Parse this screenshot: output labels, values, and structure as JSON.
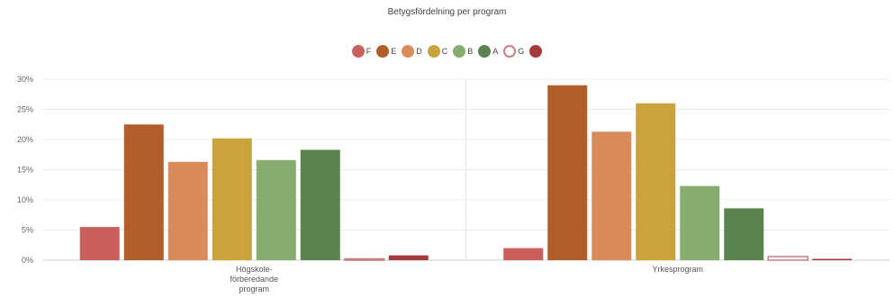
{
  "chart_data": {
    "type": "bar",
    "title": "Betygsfördelning per program",
    "categories": [
      [
        "Högskole-",
        "förberedande",
        "program"
      ],
      [
        "Yrkesprogram"
      ]
    ],
    "series": [
      {
        "name": "F",
        "color": "#c9605b",
        "hollow": false,
        "values": [
          5.5,
          2.0
        ]
      },
      {
        "name": "E",
        "color": "#b05f2a",
        "hollow": false,
        "values": [
          22.5,
          29.0
        ]
      },
      {
        "name": "D",
        "color": "#d98c5a",
        "hollow": false,
        "values": [
          16.3,
          21.3
        ]
      },
      {
        "name": "C",
        "color": "#c9a33e",
        "hollow": false,
        "values": [
          20.2,
          26.0
        ]
      },
      {
        "name": "B",
        "color": "#87ad71",
        "hollow": false,
        "values": [
          16.6,
          12.3
        ]
      },
      {
        "name": "A",
        "color": "#5b8350",
        "hollow": false,
        "values": [
          18.3,
          8.6
        ]
      },
      {
        "name": "G",
        "color": "#c97e7e",
        "hollow": true,
        "values": [
          0.1,
          0.6
        ]
      },
      {
        "name": "",
        "color": "#a63a3a",
        "hollow": false,
        "values": [
          0.8,
          0.2
        ]
      }
    ],
    "y_ticks": [
      "0%",
      "5%",
      "10%",
      "15%",
      "20%",
      "25%",
      "30%"
    ],
    "ylim": [
      0,
      30
    ],
    "grid": true,
    "legend_position": "top-center"
  }
}
